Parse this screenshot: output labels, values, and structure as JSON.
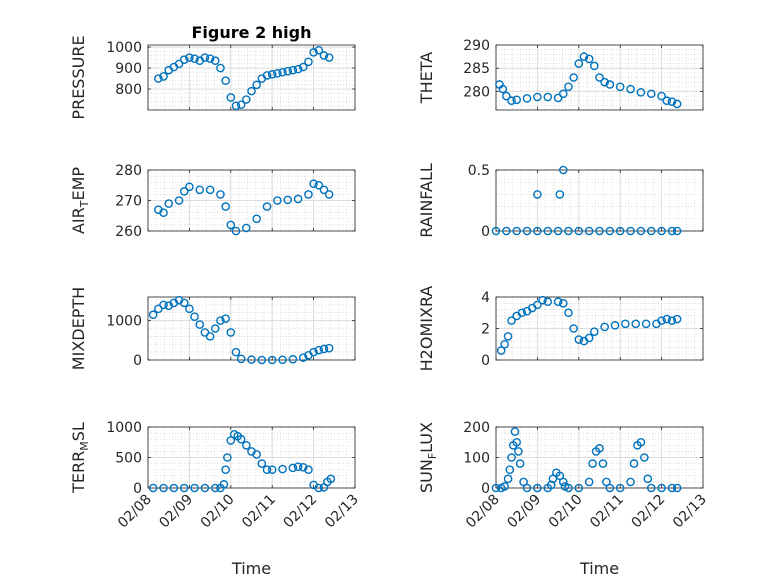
{
  "chart_data": [
    {
      "type": "scatter",
      "title": "Figure 2 high",
      "ylabel": "PRESSURE",
      "xlabel": "",
      "xlim": [
        "02/08",
        "02/13"
      ],
      "ylim": [
        700,
        1010
      ],
      "yticks": [
        800,
        900,
        1000
      ],
      "xticks": [
        "02/08",
        "02/09",
        "02/10",
        "02/11",
        "02/12",
        "02/13"
      ],
      "grid": "major and minor",
      "color": "#0072bd",
      "points": [
        [
          "02/08 06:00",
          850
        ],
        [
          "02/08 09:00",
          860
        ],
        [
          "02/08 12:00",
          890
        ],
        [
          "02/08 15:00",
          905
        ],
        [
          "02/08 18:00",
          920
        ],
        [
          "02/08 21:00",
          940
        ],
        [
          "02/09 00:00",
          950
        ],
        [
          "02/09 03:00",
          945
        ],
        [
          "02/09 06:00",
          935
        ],
        [
          "02/09 09:00",
          950
        ],
        [
          "02/09 12:00",
          945
        ],
        [
          "02/09 15:00",
          935
        ],
        [
          "02/09 18:00",
          900
        ],
        [
          "02/09 21:00",
          840
        ],
        [
          "02/10 00:00",
          760
        ],
        [
          "02/10 03:00",
          720
        ],
        [
          "02/10 06:00",
          725
        ],
        [
          "02/10 09:00",
          750
        ],
        [
          "02/10 12:00",
          790
        ],
        [
          "02/10 15:00",
          820
        ],
        [
          "02/10 18:00",
          850
        ],
        [
          "02/10 21:00",
          865
        ],
        [
          "02/11 00:00",
          870
        ],
        [
          "02/11 03:00",
          875
        ],
        [
          "02/11 06:00",
          880
        ],
        [
          "02/11 09:00",
          885
        ],
        [
          "02/11 12:00",
          890
        ],
        [
          "02/11 15:00",
          895
        ],
        [
          "02/11 18:00",
          905
        ],
        [
          "02/11 21:00",
          930
        ],
        [
          "02/12 00:00",
          975
        ],
        [
          "02/12 03:00",
          985
        ],
        [
          "02/12 06:00",
          960
        ],
        [
          "02/12 09:00",
          950
        ]
      ]
    },
    {
      "type": "scatter",
      "title": "",
      "ylabel": "THETA",
      "xlabel": "",
      "xlim": [
        "02/08",
        "02/13"
      ],
      "ylim": [
        276,
        290
      ],
      "yticks": [
        280,
        285,
        290
      ],
      "xticks": [
        "02/08",
        "02/09",
        "02/10",
        "02/11",
        "02/12",
        "02/13"
      ],
      "grid": "major and minor",
      "color": "#0072bd",
      "points": [
        [
          "02/08 02:00",
          281.5
        ],
        [
          "02/08 04:00",
          280.5
        ],
        [
          "02/08 06:00",
          279
        ],
        [
          "02/08 09:00",
          278
        ],
        [
          "02/08 12:00",
          278.2
        ],
        [
          "02/08 18:00",
          278.5
        ],
        [
          "02/09 00:00",
          278.8
        ],
        [
          "02/09 06:00",
          278.8
        ],
        [
          "02/09 12:00",
          278.6
        ],
        [
          "02/09 15:00",
          279.5
        ],
        [
          "02/09 18:00",
          281
        ],
        [
          "02/09 21:00",
          283
        ],
        [
          "02/10 00:00",
          286
        ],
        [
          "02/10 03:00",
          287.5
        ],
        [
          "02/10 06:00",
          287
        ],
        [
          "02/10 09:00",
          285.5
        ],
        [
          "02/10 12:00",
          283
        ],
        [
          "02/10 15:00",
          282
        ],
        [
          "02/10 18:00",
          281.5
        ],
        [
          "02/11 00:00",
          281
        ],
        [
          "02/11 06:00",
          280.5
        ],
        [
          "02/11 12:00",
          279.8
        ],
        [
          "02/11 18:00",
          279.5
        ],
        [
          "02/12 00:00",
          279
        ],
        [
          "02/12 03:00",
          278
        ],
        [
          "02/12 06:00",
          277.8
        ],
        [
          "02/12 09:00",
          277.3
        ]
      ]
    },
    {
      "type": "scatter",
      "title": "",
      "ylabel": "AIR_TEMP",
      "xlabel": "",
      "xlim": [
        "02/08",
        "02/13"
      ],
      "ylim": [
        260,
        280
      ],
      "yticks": [
        260,
        270,
        280
      ],
      "xticks": [
        "02/08",
        "02/09",
        "02/10",
        "02/11",
        "02/12",
        "02/13"
      ],
      "grid": "major and minor",
      "color": "#0072bd",
      "points": [
        [
          "02/08 06:00",
          267
        ],
        [
          "02/08 09:00",
          266
        ],
        [
          "02/08 12:00",
          269
        ],
        [
          "02/08 18:00",
          270
        ],
        [
          "02/08 21:00",
          273
        ],
        [
          "02/09 00:00",
          274.5
        ],
        [
          "02/09 06:00",
          273.5
        ],
        [
          "02/09 12:00",
          273.5
        ],
        [
          "02/09 18:00",
          272
        ],
        [
          "02/09 21:00",
          268
        ],
        [
          "02/10 00:00",
          262
        ],
        [
          "02/10 03:00",
          260
        ],
        [
          "02/10 09:00",
          261
        ],
        [
          "02/10 15:00",
          264
        ],
        [
          "02/10 21:00",
          268
        ],
        [
          "02/11 03:00",
          270
        ],
        [
          "02/11 09:00",
          270.2
        ],
        [
          "02/11 15:00",
          270.5
        ],
        [
          "02/11 21:00",
          272
        ],
        [
          "02/12 00:00",
          275.5
        ],
        [
          "02/12 03:00",
          275
        ],
        [
          "02/12 06:00",
          273.5
        ],
        [
          "02/12 09:00",
          272
        ]
      ]
    },
    {
      "type": "scatter",
      "title": "",
      "ylabel": "RAINFALL",
      "xlabel": "",
      "xlim": [
        "02/08",
        "02/13"
      ],
      "ylim": [
        0,
        0.5
      ],
      "yticks": [
        0,
        0.5
      ],
      "xticks": [
        "02/08",
        "02/09",
        "02/10",
        "02/11",
        "02/12",
        "02/13"
      ],
      "grid": "major and minor",
      "color": "#0072bd",
      "points": [
        [
          "02/08 00:00",
          0
        ],
        [
          "02/08 06:00",
          0
        ],
        [
          "02/08 12:00",
          0
        ],
        [
          "02/08 18:00",
          0
        ],
        [
          "02/09 00:00",
          0
        ],
        [
          "02/09 00:00",
          0.3
        ],
        [
          "02/09 06:00",
          0
        ],
        [
          "02/09 12:00",
          0
        ],
        [
          "02/09 13:00",
          0.3
        ],
        [
          "02/09 15:00",
          0.5
        ],
        [
          "02/09 18:00",
          0
        ],
        [
          "02/10 00:00",
          0
        ],
        [
          "02/10 06:00",
          0
        ],
        [
          "02/10 12:00",
          0
        ],
        [
          "02/10 18:00",
          0
        ],
        [
          "02/11 00:00",
          0
        ],
        [
          "02/11 06:00",
          0
        ],
        [
          "02/11 12:00",
          0
        ],
        [
          "02/11 18:00",
          0
        ],
        [
          "02/12 00:00",
          0
        ],
        [
          "02/12 06:00",
          0
        ],
        [
          "02/12 09:00",
          0
        ]
      ]
    },
    {
      "type": "scatter",
      "title": "",
      "ylabel": "MIXDEPTH",
      "xlabel": "",
      "xlim": [
        "02/08",
        "02/13"
      ],
      "ylim": [
        0,
        1600
      ],
      "yticks": [
        0,
        1000
      ],
      "xticks": [
        "02/08",
        "02/09",
        "02/10",
        "02/11",
        "02/12",
        "02/13"
      ],
      "grid": "major and minor",
      "color": "#0072bd",
      "points": [
        [
          "02/08 03:00",
          1150
        ],
        [
          "02/08 06:00",
          1300
        ],
        [
          "02/08 09:00",
          1400
        ],
        [
          "02/08 12:00",
          1380
        ],
        [
          "02/08 15:00",
          1450
        ],
        [
          "02/08 18:00",
          1520
        ],
        [
          "02/08 21:00",
          1450
        ],
        [
          "02/09 00:00",
          1300
        ],
        [
          "02/09 03:00",
          1100
        ],
        [
          "02/09 06:00",
          900
        ],
        [
          "02/09 09:00",
          700
        ],
        [
          "02/09 12:00",
          600
        ],
        [
          "02/09 15:00",
          800
        ],
        [
          "02/09 18:00",
          1000
        ],
        [
          "02/09 21:00",
          1050
        ],
        [
          "02/10 00:00",
          700
        ],
        [
          "02/10 03:00",
          200
        ],
        [
          "02/10 06:00",
          30
        ],
        [
          "02/10 12:00",
          10
        ],
        [
          "02/10 18:00",
          0
        ],
        [
          "02/11 00:00",
          0
        ],
        [
          "02/11 06:00",
          5
        ],
        [
          "02/11 12:00",
          20
        ],
        [
          "02/11 18:00",
          60
        ],
        [
          "02/11 21:00",
          120
        ],
        [
          "02/12 00:00",
          200
        ],
        [
          "02/12 03:00",
          250
        ],
        [
          "02/12 06:00",
          280
        ],
        [
          "02/12 09:00",
          300
        ]
      ]
    },
    {
      "type": "scatter",
      "title": "",
      "ylabel": "H2OMIXRA",
      "xlabel": "",
      "xlim": [
        "02/08",
        "02/13"
      ],
      "ylim": [
        0,
        4
      ],
      "yticks": [
        0,
        2,
        4
      ],
      "xticks": [
        "02/08",
        "02/09",
        "02/10",
        "02/11",
        "02/12",
        "02/13"
      ],
      "grid": "major and minor",
      "color": "#0072bd",
      "points": [
        [
          "02/08 03:00",
          0.6
        ],
        [
          "02/08 05:00",
          1.0
        ],
        [
          "02/08 07:00",
          1.5
        ],
        [
          "02/08 09:00",
          2.5
        ],
        [
          "02/08 12:00",
          2.8
        ],
        [
          "02/08 15:00",
          3.0
        ],
        [
          "02/08 18:00",
          3.1
        ],
        [
          "02/08 21:00",
          3.3
        ],
        [
          "02/09 00:00",
          3.5
        ],
        [
          "02/09 03:00",
          3.8
        ],
        [
          "02/09 06:00",
          3.7
        ],
        [
          "02/09 12:00",
          3.7
        ],
        [
          "02/09 15:00",
          3.6
        ],
        [
          "02/09 18:00",
          3.0
        ],
        [
          "02/09 21:00",
          2.0
        ],
        [
          "02/10 00:00",
          1.3
        ],
        [
          "02/10 03:00",
          1.2
        ],
        [
          "02/10 06:00",
          1.4
        ],
        [
          "02/10 09:00",
          1.8
        ],
        [
          "02/10 15:00",
          2.1
        ],
        [
          "02/10 21:00",
          2.2
        ],
        [
          "02/11 03:00",
          2.3
        ],
        [
          "02/11 09:00",
          2.3
        ],
        [
          "02/11 15:00",
          2.3
        ],
        [
          "02/11 21:00",
          2.3
        ],
        [
          "02/12 00:00",
          2.5
        ],
        [
          "02/12 03:00",
          2.6
        ],
        [
          "02/12 06:00",
          2.5
        ],
        [
          "02/12 09:00",
          2.6
        ]
      ]
    },
    {
      "type": "scatter",
      "title": "",
      "ylabel": "TERR_MSL",
      "xlabel": "Time",
      "xlim": [
        "02/08",
        "02/13"
      ],
      "ylim": [
        0,
        1000
      ],
      "yticks": [
        0,
        500,
        1000
      ],
      "xticks": [
        "02/08",
        "02/09",
        "02/10",
        "02/11",
        "02/12",
        "02/13"
      ],
      "grid": "major and minor",
      "color": "#0072bd",
      "points": [
        [
          "02/08 03:00",
          0
        ],
        [
          "02/08 09:00",
          0
        ],
        [
          "02/08 15:00",
          0
        ],
        [
          "02/08 21:00",
          0
        ],
        [
          "02/09 03:00",
          0
        ],
        [
          "02/09 09:00",
          0
        ],
        [
          "02/09 15:00",
          0
        ],
        [
          "02/09 18:00",
          0
        ],
        [
          "02/09 20:00",
          60
        ],
        [
          "02/09 21:00",
          300
        ],
        [
          "02/09 22:00",
          500
        ],
        [
          "02/10 00:00",
          780
        ],
        [
          "02/10 02:00",
          880
        ],
        [
          "02/10 04:00",
          850
        ],
        [
          "02/10 06:00",
          800
        ],
        [
          "02/10 09:00",
          700
        ],
        [
          "02/10 12:00",
          600
        ],
        [
          "02/10 15:00",
          550
        ],
        [
          "02/10 18:00",
          400
        ],
        [
          "02/10 21:00",
          300
        ],
        [
          "02/11 00:00",
          300
        ],
        [
          "02/11 06:00",
          310
        ],
        [
          "02/11 12:00",
          330
        ],
        [
          "02/11 15:00",
          350
        ],
        [
          "02/11 18:00",
          340
        ],
        [
          "02/11 21:00",
          300
        ],
        [
          "02/12 00:00",
          50
        ],
        [
          "02/12 03:00",
          0
        ],
        [
          "02/12 06:00",
          10
        ],
        [
          "02/12 08:00",
          100
        ],
        [
          "02/12 10:00",
          150
        ]
      ]
    },
    {
      "type": "scatter",
      "title": "",
      "ylabel": "SUN_FLUX",
      "xlabel": "Time",
      "xlim": [
        "02/08",
        "02/13"
      ],
      "ylim": [
        0,
        200
      ],
      "yticks": [
        0,
        100,
        200
      ],
      "xticks": [
        "02/08",
        "02/09",
        "02/10",
        "02/11",
        "02/12",
        "02/13"
      ],
      "grid": "major and minor",
      "color": "#0072bd",
      "points": [
        [
          "02/08 00:00",
          0
        ],
        [
          "02/08 03:00",
          0
        ],
        [
          "02/08 05:00",
          5
        ],
        [
          "02/08 07:00",
          30
        ],
        [
          "02/08 08:00",
          60
        ],
        [
          "02/08 09:00",
          100
        ],
        [
          "02/08 10:00",
          140
        ],
        [
          "02/08 11:00",
          185
        ],
        [
          "02/08 12:00",
          150
        ],
        [
          "02/08 13:00",
          120
        ],
        [
          "02/08 14:00",
          80
        ],
        [
          "02/08 16:00",
          20
        ],
        [
          "02/08 18:00",
          0
        ],
        [
          "02/09 00:00",
          0
        ],
        [
          "02/09 06:00",
          0
        ],
        [
          "02/09 08:00",
          10
        ],
        [
          "02/09 09:00",
          30
        ],
        [
          "02/09 11:00",
          50
        ],
        [
          "02/09 13:00",
          40
        ],
        [
          "02/09 15:00",
          20
        ],
        [
          "02/09 16:00",
          5
        ],
        [
          "02/09 18:00",
          0
        ],
        [
          "02/10 00:00",
          0
        ],
        [
          "02/10 06:00",
          20
        ],
        [
          "02/10 08:00",
          80
        ],
        [
          "02/10 10:00",
          120
        ],
        [
          "02/10 12:00",
          130
        ],
        [
          "02/10 14:00",
          80
        ],
        [
          "02/10 16:00",
          20
        ],
        [
          "02/10 18:00",
          0
        ],
        [
          "02/11 00:00",
          0
        ],
        [
          "02/11 06:00",
          20
        ],
        [
          "02/11 08:00",
          80
        ],
        [
          "02/11 10:00",
          140
        ],
        [
          "02/11 12:00",
          150
        ],
        [
          "02/11 14:00",
          100
        ],
        [
          "02/11 16:00",
          30
        ],
        [
          "02/11 18:00",
          0
        ],
        [
          "02/12 00:00",
          0
        ],
        [
          "02/12 06:00",
          0
        ],
        [
          "02/12 09:00",
          0
        ]
      ]
    }
  ]
}
